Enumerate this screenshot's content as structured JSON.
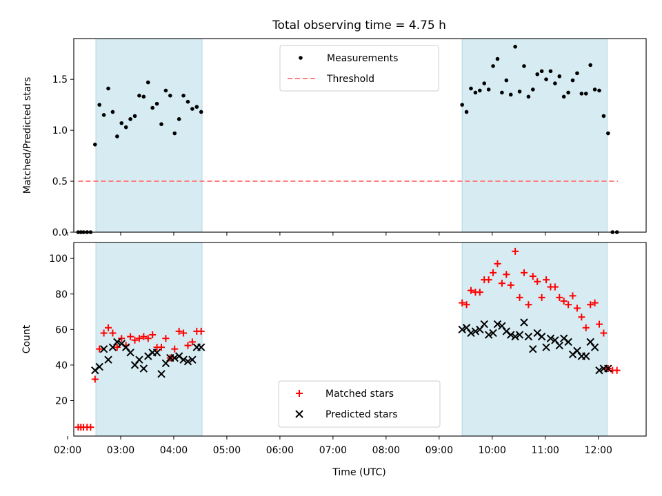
{
  "figure": {
    "title": "Total observing time = 4.75 h",
    "xlabel": "Time (UTC)"
  },
  "colors": {
    "shade": "#add8e6",
    "measurement": "#000000",
    "threshold": "#ff7f7f",
    "matched": "#ff0000",
    "predicted": "#000000"
  },
  "chart_data": [
    {
      "type": "scatter",
      "ylabel": "Matched/Predicted stars",
      "xlim": [
        "02:07",
        "12:54"
      ],
      "ylim": [
        0,
        1.9
      ],
      "yticks": [
        0.0,
        0.5,
        1.0,
        1.5
      ],
      "yticklabels": [
        "0.0",
        "0.5",
        "1.0",
        "1.5"
      ],
      "legend_position": "upper center",
      "shaded_intervals": [
        [
          "02:32",
          "04:32"
        ],
        [
          "09:26",
          "12:10"
        ]
      ],
      "threshold": {
        "name": "Threshold",
        "y": 0.5,
        "x_range": [
          "02:12",
          "12:22"
        ],
        "style": "dashed"
      },
      "series": [
        {
          "name": "Measurements",
          "marker": "dot",
          "x": [
            "02:12",
            "02:15",
            "02:18",
            "02:22",
            "02:26",
            "02:31",
            "02:36",
            "02:41",
            "02:46",
            "02:51",
            "02:56",
            "03:01",
            "03:06",
            "03:11",
            "03:16",
            "03:21",
            "03:26",
            "03:31",
            "03:36",
            "03:41",
            "03:46",
            "03:51",
            "03:56",
            "04:01",
            "04:06",
            "04:11",
            "04:16",
            "04:21",
            "04:26",
            "04:31",
            "09:26",
            "09:31",
            "09:36",
            "09:41",
            "09:46",
            "09:51",
            "09:56",
            "10:01",
            "10:06",
            "10:11",
            "10:16",
            "10:21",
            "10:26",
            "10:31",
            "10:36",
            "10:41",
            "10:46",
            "10:51",
            "10:56",
            "11:01",
            "11:06",
            "11:11",
            "11:16",
            "11:21",
            "11:26",
            "11:31",
            "11:36",
            "11:41",
            "11:46",
            "11:51",
            "11:56",
            "12:01",
            "12:06",
            "12:11",
            "12:16",
            "12:21"
          ],
          "y": [
            0,
            0,
            0,
            0,
            0,
            0.86,
            1.25,
            1.15,
            1.41,
            1.18,
            0.94,
            1.07,
            1.03,
            1.11,
            1.14,
            1.34,
            1.33,
            1.47,
            1.22,
            1.26,
            1.06,
            1.39,
            1.34,
            0.97,
            1.11,
            1.34,
            1.28,
            1.21,
            1.23,
            1.18,
            1.25,
            1.18,
            1.41,
            1.37,
            1.39,
            1.46,
            1.4,
            1.63,
            1.7,
            1.37,
            1.49,
            1.35,
            1.82,
            1.38,
            1.63,
            1.33,
            1.4,
            1.55,
            1.58,
            1.5,
            1.58,
            1.46,
            1.53,
            1.33,
            1.37,
            1.49,
            1.56,
            1.36,
            1.36,
            1.64,
            1.4,
            1.39,
            1.14,
            0.97,
            0,
            0
          ]
        }
      ]
    },
    {
      "type": "scatter",
      "ylabel": "Count",
      "xlim": [
        "02:07",
        "12:54"
      ],
      "ylim": [
        0,
        109
      ],
      "yticks": [
        20,
        40,
        60,
        80,
        100
      ],
      "yticklabels": [
        "20",
        "40",
        "60",
        "80",
        "100"
      ],
      "xticks": [
        "02:00",
        "03:00",
        "04:00",
        "05:00",
        "06:00",
        "07:00",
        "08:00",
        "09:00",
        "10:00",
        "11:00",
        "12:00"
      ],
      "xticklabels": [
        "02:00",
        "03:00",
        "04:00",
        "05:00",
        "06:00",
        "07:00",
        "08:00",
        "09:00",
        "10:00",
        "11:00",
        "12:00"
      ],
      "legend_position": "lower center",
      "shaded_intervals": [
        [
          "02:32",
          "04:32"
        ],
        [
          "09:26",
          "12:10"
        ]
      ],
      "series": [
        {
          "name": "Matched stars",
          "marker": "plus",
          "x": [
            "02:12",
            "02:15",
            "02:18",
            "02:22",
            "02:26",
            "02:31",
            "02:36",
            "02:41",
            "02:46",
            "02:51",
            "02:56",
            "03:01",
            "03:06",
            "03:11",
            "03:16",
            "03:21",
            "03:26",
            "03:31",
            "03:36",
            "03:41",
            "03:46",
            "03:51",
            "03:56",
            "04:01",
            "04:06",
            "04:11",
            "04:16",
            "04:21",
            "04:26",
            "04:31",
            "09:26",
            "09:31",
            "09:36",
            "09:41",
            "09:46",
            "09:51",
            "09:56",
            "10:01",
            "10:06",
            "10:11",
            "10:16",
            "10:21",
            "10:26",
            "10:31",
            "10:36",
            "10:41",
            "10:46",
            "10:51",
            "10:56",
            "11:01",
            "11:06",
            "11:11",
            "11:16",
            "11:21",
            "11:26",
            "11:31",
            "11:36",
            "11:41",
            "11:46",
            "11:51",
            "11:56",
            "12:01",
            "12:06",
            "12:11",
            "12:16",
            "12:21"
          ],
          "y": [
            5,
            5,
            5,
            5,
            5,
            32,
            49,
            58,
            61,
            58,
            50,
            55,
            51,
            56,
            54,
            55,
            56,
            55,
            57,
            50,
            50,
            55,
            44,
            49,
            59,
            58,
            51,
            53,
            59,
            59,
            75,
            74,
            82,
            81,
            81,
            88,
            88,
            92,
            97,
            86,
            91,
            85,
            104,
            78,
            92,
            74,
            90,
            87,
            78,
            88,
            84,
            84,
            78,
            76,
            74,
            79,
            72,
            67,
            61,
            74,
            75,
            63,
            58,
            38,
            37,
            37
          ]
        },
        {
          "name": "Predicted stars",
          "marker": "x",
          "x": [
            "02:31",
            "02:36",
            "02:41",
            "02:46",
            "02:51",
            "02:56",
            "03:01",
            "03:06",
            "03:11",
            "03:16",
            "03:21",
            "03:26",
            "03:31",
            "03:36",
            "03:41",
            "03:46",
            "03:51",
            "03:56",
            "04:01",
            "04:06",
            "04:11",
            "04:16",
            "04:21",
            "04:26",
            "04:31",
            "09:26",
            "09:31",
            "09:36",
            "09:41",
            "09:46",
            "09:51",
            "09:56",
            "10:01",
            "10:06",
            "10:11",
            "10:16",
            "10:21",
            "10:26",
            "10:31",
            "10:36",
            "10:41",
            "10:46",
            "10:51",
            "10:56",
            "11:01",
            "11:06",
            "11:11",
            "11:16",
            "11:21",
            "11:26",
            "11:31",
            "11:36",
            "11:41",
            "11:46",
            "11:51",
            "11:56",
            "12:01",
            "12:06",
            "12:11"
          ],
          "y": [
            37,
            39,
            49,
            43,
            50,
            53,
            52,
            50,
            47,
            40,
            43,
            38,
            45,
            47,
            47,
            35,
            41,
            44,
            44,
            45,
            43,
            42,
            43,
            50,
            50,
            60,
            61,
            58,
            59,
            60,
            63,
            57,
            58,
            63,
            62,
            59,
            57,
            56,
            57,
            64,
            56,
            49,
            58,
            56,
            50,
            55,
            54,
            51,
            55,
            53,
            46,
            48,
            45,
            45,
            53,
            50,
            37,
            38,
            38
          ]
        }
      ]
    }
  ]
}
